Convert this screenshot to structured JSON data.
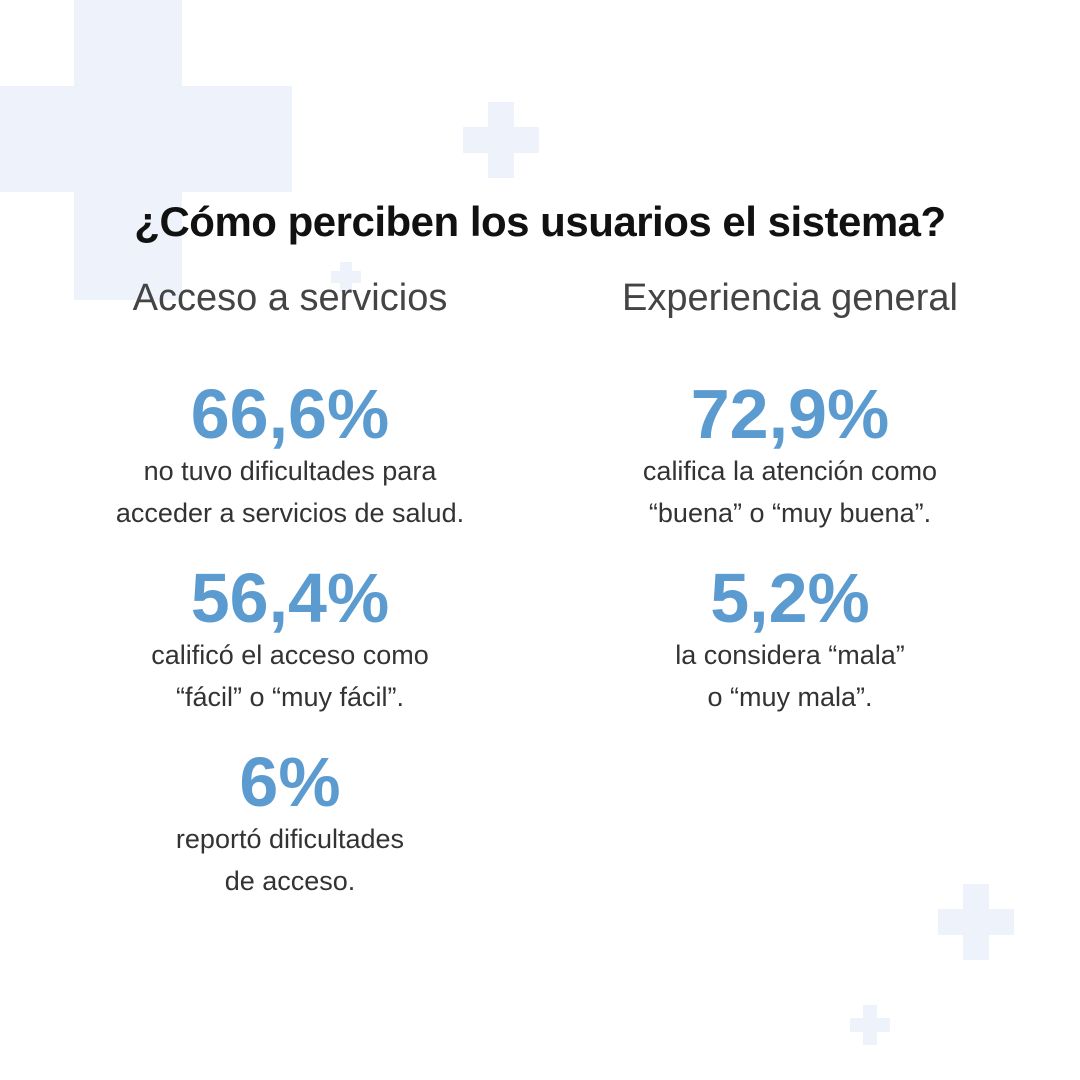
{
  "title": "¿Cómo perciben los usuarios el sistema?",
  "colors": {
    "accent": "#5b9bd0",
    "heading": "#444444",
    "text": "#333333",
    "decoration": "#eef3fb"
  },
  "left": {
    "heading": "Acceso a servicios",
    "stats": [
      {
        "value": "66,6%",
        "desc": "no tuvo dificultades para\nacceder a servicios de salud."
      },
      {
        "value": "56,4%",
        "desc": "calificó el acceso como\n“fácil” o “muy fácil”."
      },
      {
        "value": "6%",
        "desc": "reportó dificultades\nde acceso."
      }
    ]
  },
  "right": {
    "heading": "Experiencia general",
    "stats": [
      {
        "value": "72,9%",
        "desc": "califica la atención como\n“buena” o “muy buena”."
      },
      {
        "value": "5,2%",
        "desc": "la considera “mala”\no “muy mala”."
      }
    ]
  }
}
